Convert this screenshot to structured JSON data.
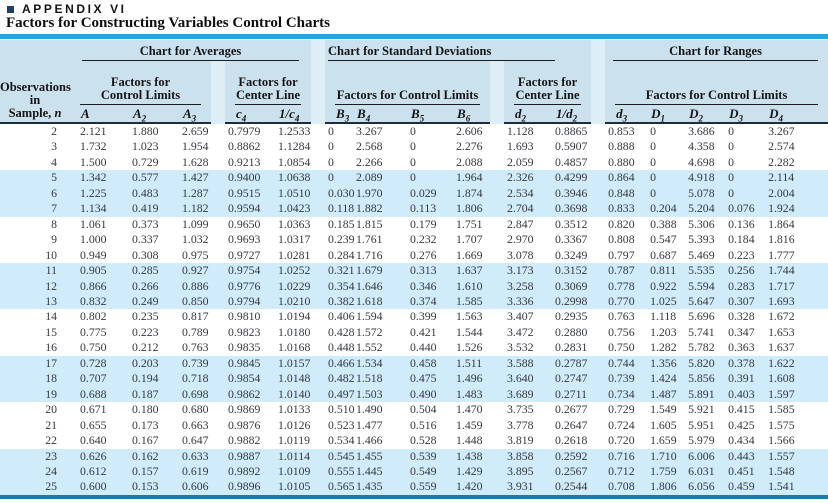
{
  "page": {
    "appendix_label": "APPENDIX VI",
    "subtitle": "Factors for Constructing Variables Control Charts"
  },
  "colors": {
    "top_bar": "#2aa6d6",
    "bottom_bar": "#1b79ae",
    "header_bg": "#cce1ee",
    "band_row_bg": "#d0ebf9",
    "group_separator_strip": "#ddeef7",
    "header_bottom_rule": "#1e2d3d",
    "bullet_square": "#1c3f63"
  },
  "table": {
    "row_header": {
      "line1": "Observations",
      "line2": "in",
      "line3_prefix": "Sample,",
      "line3_symbol": "n"
    },
    "groups": [
      {
        "label": "Chart for Averages"
      },
      {
        "label": "Chart for Standard Deviations"
      },
      {
        "label": "Chart for Ranges"
      }
    ],
    "subgroups": [
      {
        "line1": "Factors for",
        "line2": "Control Limits"
      },
      {
        "line1": "Factors for",
        "line2": "Center Line"
      },
      {
        "label": "Factors for Control Limits"
      },
      {
        "line1": "Factors for",
        "line2": "Center Line"
      },
      {
        "label": "Factors for Control Limits"
      }
    ],
    "columns": [
      {
        "base": "A",
        "sub": ""
      },
      {
        "base": "A",
        "sub": "2"
      },
      {
        "base": "A",
        "sub": "3"
      },
      {
        "base": "c",
        "sub": "4"
      },
      {
        "base": "1/c",
        "sub": "4"
      },
      {
        "base": "B",
        "sub": "3"
      },
      {
        "base": "B",
        "sub": "4"
      },
      {
        "base": "B",
        "sub": "5"
      },
      {
        "base": "B",
        "sub": "6"
      },
      {
        "base": "d",
        "sub": "2"
      },
      {
        "base": "1/d",
        "sub": "2"
      },
      {
        "base": "d",
        "sub": "3"
      },
      {
        "base": "D",
        "sub": "1"
      },
      {
        "base": "D",
        "sub": "2"
      },
      {
        "base": "D",
        "sub": "3"
      },
      {
        "base": "D",
        "sub": "4"
      }
    ],
    "rows": [
      [
        "2",
        "2.121",
        "1.880",
        "2.659",
        "0.7979",
        "1.2533",
        "0",
        "3.267",
        "0",
        "2.606",
        "1.128",
        "0.8865",
        "0.853",
        "0",
        "3.686",
        "0",
        "3.267"
      ],
      [
        "3",
        "1.732",
        "1.023",
        "1.954",
        "0.8862",
        "1.1284",
        "0",
        "2.568",
        "0",
        "2.276",
        "1.693",
        "0.5907",
        "0.888",
        "0",
        "4.358",
        "0",
        "2.574"
      ],
      [
        "4",
        "1.500",
        "0.729",
        "1.628",
        "0.9213",
        "1.0854",
        "0",
        "2.266",
        "0",
        "2.088",
        "2.059",
        "0.4857",
        "0.880",
        "0",
        "4.698",
        "0",
        "2.282"
      ],
      [
        "5",
        "1.342",
        "0.577",
        "1.427",
        "0.9400",
        "1.0638",
        "0",
        "2.089",
        "0",
        "1.964",
        "2.326",
        "0.4299",
        "0.864",
        "0",
        "4.918",
        "0",
        "2.114"
      ],
      [
        "6",
        "1.225",
        "0.483",
        "1.287",
        "0.9515",
        "1.0510",
        "0.030",
        "1.970",
        "0.029",
        "1.874",
        "2.534",
        "0.3946",
        "0.848",
        "0",
        "5.078",
        "0",
        "2.004"
      ],
      [
        "7",
        "1.134",
        "0.419",
        "1.182",
        "0.9594",
        "1.0423",
        "0.118",
        "1.882",
        "0.113",
        "1.806",
        "2.704",
        "0.3698",
        "0.833",
        "0.204",
        "5.204",
        "0.076",
        "1.924"
      ],
      [
        "8",
        "1.061",
        "0.373",
        "1.099",
        "0.9650",
        "1.0363",
        "0.185",
        "1.815",
        "0.179",
        "1.751",
        "2.847",
        "0.3512",
        "0.820",
        "0.388",
        "5.306",
        "0.136",
        "1.864"
      ],
      [
        "9",
        "1.000",
        "0.337",
        "1.032",
        "0.9693",
        "1.0317",
        "0.239",
        "1.761",
        "0.232",
        "1.707",
        "2.970",
        "0.3367",
        "0.808",
        "0.547",
        "5.393",
        "0.184",
        "1.816"
      ],
      [
        "10",
        "0.949",
        "0.308",
        "0.975",
        "0.9727",
        "1.0281",
        "0.284",
        "1.716",
        "0.276",
        "1.669",
        "3.078",
        "0.3249",
        "0.797",
        "0.687",
        "5.469",
        "0.223",
        "1.777"
      ],
      [
        "11",
        "0.905",
        "0.285",
        "0.927",
        "0.9754",
        "1.0252",
        "0.321",
        "1.679",
        "0.313",
        "1.637",
        "3.173",
        "0.3152",
        "0.787",
        "0.811",
        "5.535",
        "0.256",
        "1.744"
      ],
      [
        "12",
        "0.866",
        "0.266",
        "0.886",
        "0.9776",
        "1.0229",
        "0.354",
        "1.646",
        "0.346",
        "1.610",
        "3.258",
        "0.3069",
        "0.778",
        "0.922",
        "5.594",
        "0.283",
        "1.717"
      ],
      [
        "13",
        "0.832",
        "0.249",
        "0.850",
        "0.9794",
        "1.0210",
        "0.382",
        "1.618",
        "0.374",
        "1.585",
        "3.336",
        "0.2998",
        "0.770",
        "1.025",
        "5.647",
        "0.307",
        "1.693"
      ],
      [
        "14",
        "0.802",
        "0.235",
        "0.817",
        "0.9810",
        "1.0194",
        "0.406",
        "1.594",
        "0.399",
        "1.563",
        "3.407",
        "0.2935",
        "0.763",
        "1.118",
        "5.696",
        "0.328",
        "1.672"
      ],
      [
        "15",
        "0.775",
        "0.223",
        "0.789",
        "0.9823",
        "1.0180",
        "0.428",
        "1.572",
        "0.421",
        "1.544",
        "3.472",
        "0.2880",
        "0.756",
        "1.203",
        "5.741",
        "0.347",
        "1.653"
      ],
      [
        "16",
        "0.750",
        "0.212",
        "0.763",
        "0.9835",
        "1.0168",
        "0.448",
        "1.552",
        "0.440",
        "1.526",
        "3.532",
        "0.2831",
        "0.750",
        "1.282",
        "5.782",
        "0.363",
        "1.637"
      ],
      [
        "17",
        "0.728",
        "0.203",
        "0.739",
        "0.9845",
        "1.0157",
        "0.466",
        "1.534",
        "0.458",
        "1.511",
        "3.588",
        "0.2787",
        "0.744",
        "1.356",
        "5.820",
        "0.378",
        "1.622"
      ],
      [
        "18",
        "0.707",
        "0.194",
        "0.718",
        "0.9854",
        "1.0148",
        "0.482",
        "1.518",
        "0.475",
        "1.496",
        "3.640",
        "0.2747",
        "0.739",
        "1.424",
        "5.856",
        "0.391",
        "1.608"
      ],
      [
        "19",
        "0.688",
        "0.187",
        "0.698",
        "0.9862",
        "1.0140",
        "0.497",
        "1.503",
        "0.490",
        "1.483",
        "3.689",
        "0.2711",
        "0.734",
        "1.487",
        "5.891",
        "0.403",
        "1.597"
      ],
      [
        "20",
        "0.671",
        "0.180",
        "0.680",
        "0.9869",
        "1.0133",
        "0.510",
        "1.490",
        "0.504",
        "1.470",
        "3.735",
        "0.2677",
        "0.729",
        "1.549",
        "5.921",
        "0.415",
        "1.585"
      ],
      [
        "21",
        "0.655",
        "0.173",
        "0.663",
        "0.9876",
        "1.0126",
        "0.523",
        "1.477",
        "0.516",
        "1.459",
        "3.778",
        "0.2647",
        "0.724",
        "1.605",
        "5.951",
        "0.425",
        "1.575"
      ],
      [
        "22",
        "0.640",
        "0.167",
        "0.647",
        "0.9882",
        "1.0119",
        "0.534",
        "1.466",
        "0.528",
        "1.448",
        "3.819",
        "0.2618",
        "0.720",
        "1.659",
        "5.979",
        "0.434",
        "1.566"
      ],
      [
        "23",
        "0.626",
        "0.162",
        "0.633",
        "0.9887",
        "1.0114",
        "0.545",
        "1.455",
        "0.539",
        "1.438",
        "3.858",
        "0.2592",
        "0.716",
        "1.710",
        "6.006",
        "0.443",
        "1.557"
      ],
      [
        "24",
        "0.612",
        "0.157",
        "0.619",
        "0.9892",
        "1.0109",
        "0.555",
        "1.445",
        "0.549",
        "1.429",
        "3.895",
        "0.2567",
        "0.712",
        "1.759",
        "6.031",
        "0.451",
        "1.548"
      ],
      [
        "25",
        "0.600",
        "0.153",
        "0.606",
        "0.9896",
        "1.0105",
        "0.565",
        "1.435",
        "0.559",
        "1.420",
        "3.931",
        "0.2544",
        "0.708",
        "1.806",
        "6.056",
        "0.459",
        "1.541"
      ]
    ]
  }
}
